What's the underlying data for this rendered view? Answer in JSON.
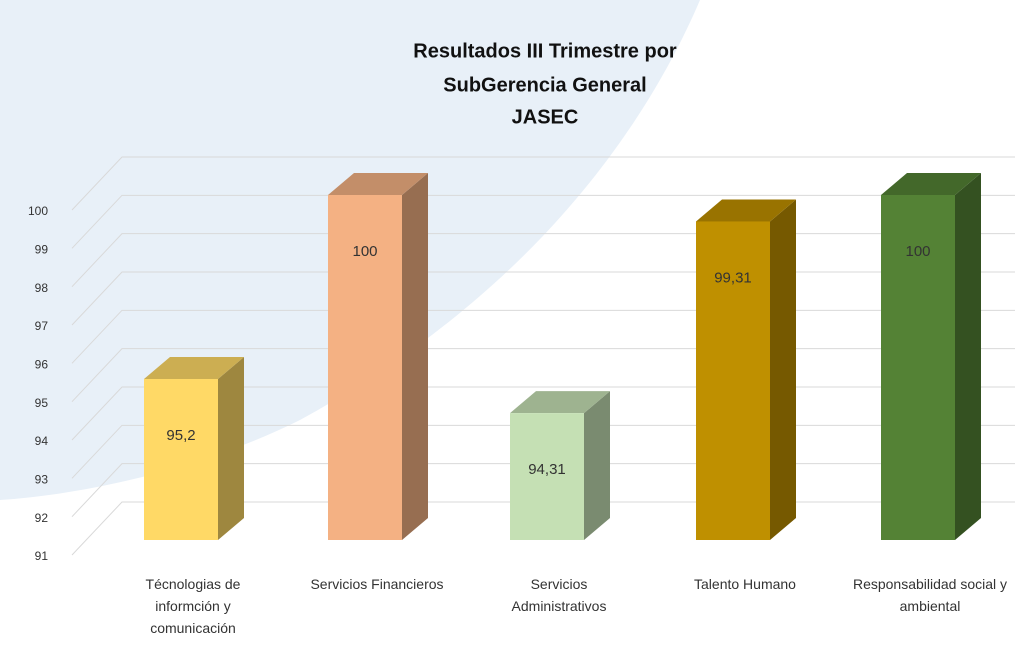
{
  "chart_data": {
    "type": "bar3d",
    "title": [
      "Resultados III Trimestre por",
      "SubGerencia General",
      "JASEC"
    ],
    "categories": [
      "Técnologias de informción y comunicación",
      "Servicios Financieros",
      "Servicios Administrativos",
      "Talento Humano",
      "Responsabilidad social y ambiental"
    ],
    "values": [
      95.2,
      100,
      94.31,
      99.31,
      100
    ],
    "value_labels": [
      "95,2",
      "100",
      "94,31",
      "99,31",
      "100"
    ],
    "colors": [
      "#ffd966",
      "#f4b183",
      "#c5e0b4",
      "#bf9000",
      "#548235"
    ],
    "ylim": [
      91,
      100
    ],
    "yticks": [
      91,
      92,
      93,
      94,
      95,
      96,
      97,
      98,
      99,
      100
    ],
    "grid": true
  }
}
